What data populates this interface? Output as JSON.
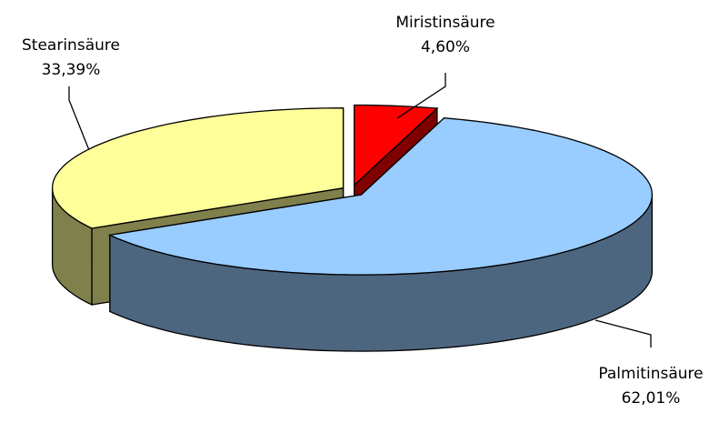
{
  "chart_data": {
    "type": "pie",
    "categories": [
      "Miristinsäure",
      "Palmitinsäure",
      "Stearinsäure"
    ],
    "values": [
      4.6,
      62.01,
      33.39
    ],
    "value_labels": [
      "4,60%",
      "62,01%",
      "33,39%"
    ],
    "colors": [
      "#ff0000",
      "#99ccff",
      "#ffff99"
    ]
  }
}
